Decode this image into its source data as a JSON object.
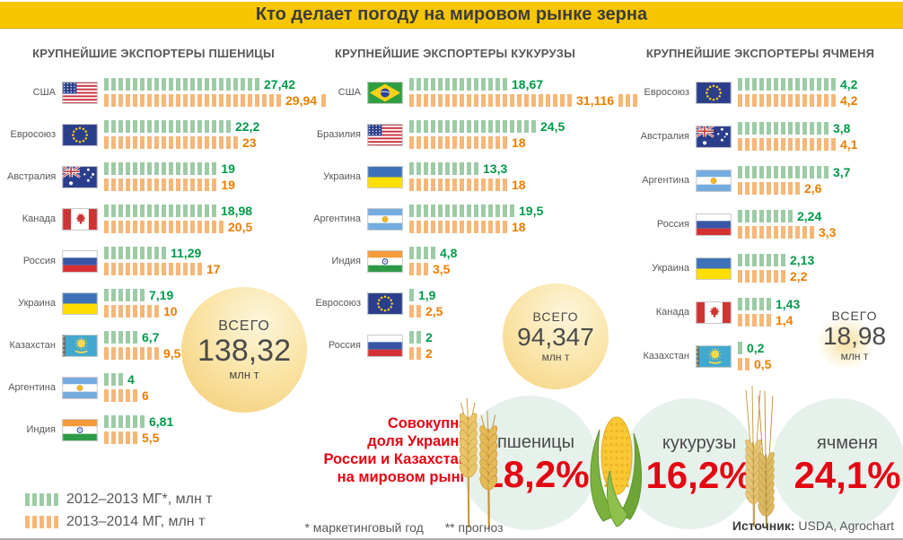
{
  "page": {
    "title": "Кто делает погоду на мировом рынке зерна",
    "footnote_marketing": "* маркетинговый год",
    "footnote_forecast": "** прогноз",
    "source_label": "Источник:",
    "source_value": "USDA, Agrochart",
    "share_note": [
      "Совокупная",
      "доля Украины,",
      "России и Казахстана",
      "на мировом рынке"
    ],
    "colors": {
      "title_bg": "#F7C600",
      "bar_green": "#9CCBA6",
      "bar_orange": "#F6B778",
      "value_green": "#009A49",
      "value_orange": "#F07C00",
      "accent_red": "#E30613",
      "total_circle_yellow": "#FAE3A4",
      "share_circle_green": "#E7F1EB",
      "text_gray": "#58585A"
    }
  },
  "legend": [
    {
      "swatch": "green",
      "label": "2012–2013 МГ*, млн т"
    },
    {
      "swatch": "orange",
      "label": "2013–2014 МГ, млн т"
    }
  ],
  "shares": [
    {
      "crop": "пшеницы",
      "value": "18,2%",
      "icon": "wheat"
    },
    {
      "crop": "кукурузы",
      "value": "16,2%",
      "icon": "corn"
    },
    {
      "crop": "ячменя",
      "value": "24,1%",
      "icon": "barley"
    }
  ],
  "chart_data": [
    {
      "type": "bar",
      "title": "КРУПНЕЙШИЕ ЭКСПОРТЕРЫ ПШЕНИЦЫ",
      "unit": "млн т",
      "series_names": [
        "2012–2013 МГ",
        "2013–2014 МГ"
      ],
      "legend_position": "bottom-left",
      "ticks_per_unit": 0.82,
      "total": {
        "label": "ВСЕГО",
        "value": "138,32",
        "value_num": 138.32,
        "unit": "млн т"
      },
      "rows": [
        {
          "country": "США",
          "flag": "us",
          "v1": 27.42,
          "v2": 29.94,
          "l1": "27,42",
          "l2": "29,94",
          "overflow2": 1
        },
        {
          "country": "Евросоюз",
          "flag": "eu",
          "v1": 22.2,
          "v2": 23,
          "l1": "22,2",
          "l2": "23"
        },
        {
          "country": "Австралия",
          "flag": "au",
          "v1": 19,
          "v2": 19,
          "l1": "19",
          "l2": "19"
        },
        {
          "country": "Канада",
          "flag": "ca",
          "v1": 18.98,
          "v2": 20.5,
          "l1": "18,98",
          "l2": "20,5"
        },
        {
          "country": "Россия",
          "flag": "ru",
          "v1": 11.29,
          "v2": 17,
          "l1": "11,29",
          "l2": "17"
        },
        {
          "country": "Украина",
          "flag": "ua",
          "v1": 7.19,
          "v2": 10,
          "l1": "7,19",
          "l2": "10"
        },
        {
          "country": "Казахстан",
          "flag": "kz",
          "v1": 6.7,
          "v2": 9.5,
          "l1": "6,7",
          "l2": "9,5"
        },
        {
          "country": "Аргентина",
          "flag": "ar",
          "v1": 4,
          "v2": 6,
          "l1": "4",
          "l2": "6"
        },
        {
          "country": "Индия",
          "flag": "in",
          "v1": 6.81,
          "v2": 5.5,
          "l1": "6,81",
          "l2": "5,5"
        }
      ]
    },
    {
      "type": "bar",
      "title": "КРУПНЕЙШИЕ ЭКСПОРТЕРЫ КУКУРУЗЫ",
      "unit": "млн т",
      "series_names": [
        "2012–2013 МГ",
        "2013–2014 МГ"
      ],
      "ticks_per_unit": 0.75,
      "total": {
        "label": "ВСЕГО",
        "value": "94,347",
        "value_num": 94.347,
        "unit": "млн т"
      },
      "rows": [
        {
          "country": "США",
          "flag": "br",
          "v1": 18.67,
          "v2": 31.116,
          "l1": "18,67",
          "l2": "31,116",
          "overflow2": 3
        },
        {
          "country": "Бразилия",
          "flag": "us",
          "v1": 24.5,
          "v2": 18,
          "l1": "24,5",
          "l2": "18"
        },
        {
          "country": "Украина",
          "flag": "ua",
          "v1": 13.3,
          "v2": 18,
          "l1": "13,3",
          "l2": "18"
        },
        {
          "country": "Аргентина",
          "flag": "ar",
          "v1": 19.5,
          "v2": 18,
          "l1": "19,5",
          "l2": "18"
        },
        {
          "country": "Индия",
          "flag": "in",
          "v1": 4.8,
          "v2": 3.5,
          "l1": "4,8",
          "l2": "3,5"
        },
        {
          "country": "Евросоюз",
          "flag": "eu",
          "v1": 1.9,
          "v2": 2.5,
          "l1": "1,9",
          "l2": "2,5"
        },
        {
          "country": "Россия",
          "flag": "ru",
          "v1": 2,
          "v2": 2,
          "l1": "2",
          "l2": "2"
        }
      ]
    },
    {
      "type": "bar",
      "title": "КРУПНЕЙШИЕ ЭКСПОРТЕРЫ ЯЧМЕНЯ",
      "unit": "млн т",
      "series_names": [
        "2012–2013 МГ",
        "2013–2014 МГ"
      ],
      "ticks_per_unit": 3.4,
      "total": {
        "label": "ВСЕГО",
        "value": "18,98",
        "value_num": 18.98,
        "unit": "млн т"
      },
      "rows": [
        {
          "country": "Евросоюз",
          "flag": "eu",
          "v1": 4.2,
          "v2": 4.2,
          "l1": "4,2",
          "l2": "4,2"
        },
        {
          "country": "Австралия",
          "flag": "au",
          "v1": 3.8,
          "v2": 4.1,
          "l1": "3,8",
          "l2": "4,1"
        },
        {
          "country": "Аргентина",
          "flag": "ar",
          "v1": 3.7,
          "v2": 2.6,
          "l1": "3,7",
          "l2": "2,6"
        },
        {
          "country": "Россия",
          "flag": "ru",
          "v1": 2.24,
          "v2": 3.3,
          "l1": "2,24",
          "l2": "3,3"
        },
        {
          "country": "Украина",
          "flag": "ua",
          "v1": 2.13,
          "v2": 2.2,
          "l1": "2,13",
          "l2": "2,2"
        },
        {
          "country": "Канада",
          "flag": "ca",
          "v1": 1.43,
          "v2": 1.4,
          "l1": "1,43",
          "l2": "1,4"
        },
        {
          "country": "Казахстан",
          "flag": "kz",
          "v1": 0.2,
          "v2": 0.5,
          "l1": "0,2",
          "l2": "0,5"
        }
      ]
    }
  ]
}
